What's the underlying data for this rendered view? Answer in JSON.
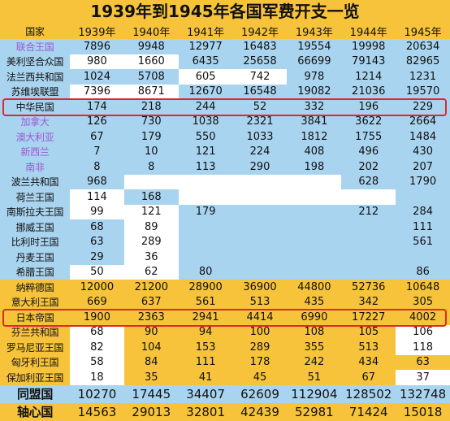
{
  "title": "1939年到1945年各国军费开支一览",
  "header": {
    "name": "国家",
    "years": [
      "1939年",
      "1940年",
      "1941年",
      "1942年",
      "1943年",
      "1944年",
      "1945年"
    ]
  },
  "colors": {
    "title_bg": "#f6c33a",
    "header_bg": "#f6c33a",
    "allies_bg": "#a9d4f0",
    "axis_bg": "#f6c33a",
    "blank_cell": "#ffffff",
    "purple_text": "#9b59d0",
    "highlight_border": "#e0282b"
  },
  "allies": [
    {
      "name": "联合王国",
      "purple": true,
      "values": [
        "7896",
        "9948",
        "12977",
        "16483",
        "19554",
        "19998",
        "20634"
      ]
    },
    {
      "name": "美利坚合众国",
      "purple": false,
      "values": [
        "980",
        "1660",
        "6435",
        "25658",
        "66699",
        "79143",
        "82965"
      ],
      "white": [
        0,
        1
      ]
    },
    {
      "name": "法兰西共和国",
      "purple": false,
      "values": [
        "1024",
        "5708",
        "605",
        "742",
        "978",
        "1214",
        "1231"
      ],
      "white": [
        2,
        3
      ]
    },
    {
      "name": "苏维埃联盟",
      "purple": false,
      "values": [
        "7396",
        "8671",
        "12670",
        "16548",
        "19082",
        "21036",
        "19570"
      ],
      "white": [
        0,
        1
      ]
    },
    {
      "name": "中华民国",
      "purple": false,
      "values": [
        "174",
        "218",
        "244",
        "52",
        "332",
        "196",
        "229"
      ],
      "highlight": true
    },
    {
      "name": "加拿大",
      "purple": true,
      "values": [
        "126",
        "730",
        "1038",
        "2321",
        "3841",
        "3622",
        "2664"
      ]
    },
    {
      "name": "澳大利亚",
      "purple": true,
      "values": [
        "67",
        "179",
        "550",
        "1033",
        "1812",
        "1755",
        "1484"
      ]
    },
    {
      "name": "新西兰",
      "purple": true,
      "values": [
        "7",
        "10",
        "121",
        "224",
        "408",
        "496",
        "430"
      ]
    },
    {
      "name": "南非",
      "purple": true,
      "values": [
        "8",
        "8",
        "113",
        "290",
        "198",
        "202",
        "207"
      ]
    },
    {
      "name": "波兰共和国",
      "purple": false,
      "values": [
        "968",
        "",
        "",
        "",
        "",
        "628",
        "1790"
      ],
      "white": [
        1,
        2,
        3,
        4
      ]
    },
    {
      "name": "荷兰王国",
      "purple": false,
      "values": [
        "114",
        "168",
        "",
        "",
        "",
        "",
        ""
      ],
      "white": [
        0,
        2,
        3,
        4,
        5
      ]
    },
    {
      "name": "南斯拉夫王国",
      "purple": false,
      "values": [
        "99",
        "121",
        "179",
        "",
        "",
        "212",
        "284"
      ],
      "white": [
        0,
        1
      ]
    },
    {
      "name": "挪威王国",
      "purple": false,
      "values": [
        "68",
        "89",
        "",
        "",
        "",
        "",
        "111"
      ],
      "white": [
        1
      ]
    },
    {
      "name": "比利时王国",
      "purple": false,
      "values": [
        "63",
        "289",
        "",
        "",
        "",
        "",
        "561"
      ],
      "white": [
        1
      ]
    },
    {
      "name": "丹麦王国",
      "purple": false,
      "values": [
        "29",
        "36",
        "",
        "",
        "",
        "",
        ""
      ],
      "white": [
        1
      ]
    },
    {
      "name": "希腊王国",
      "purple": false,
      "values": [
        "50",
        "62",
        "80",
        "",
        "",
        "",
        "86"
      ],
      "white": [
        0,
        1
      ]
    }
  ],
  "axis": [
    {
      "name": "纳粹德国",
      "values": [
        "12000",
        "21200",
        "28900",
        "36900",
        "44800",
        "52736",
        "10648"
      ]
    },
    {
      "name": "意大利王国",
      "values": [
        "669",
        "637",
        "561",
        "513",
        "435",
        "342",
        "305"
      ]
    },
    {
      "name": "日本帝国",
      "values": [
        "1900",
        "2363",
        "2941",
        "4414",
        "6990",
        "17227",
        "4002"
      ],
      "highlight": true
    },
    {
      "name": "芬兰共和国",
      "values": [
        "68",
        "90",
        "94",
        "100",
        "108",
        "105",
        "106"
      ],
      "white": [
        0,
        6
      ]
    },
    {
      "name": "罗马尼亚王国",
      "values": [
        "82",
        "104",
        "153",
        "289",
        "355",
        "513",
        "118"
      ],
      "white": [
        0,
        6
      ]
    },
    {
      "name": "匈牙利王国",
      "values": [
        "58",
        "84",
        "111",
        "178",
        "242",
        "434",
        "63"
      ],
      "white": [
        0
      ]
    },
    {
      "name": "保加利亚王国",
      "values": [
        "18",
        "35",
        "41",
        "45",
        "51",
        "67",
        "37"
      ],
      "white": [
        0,
        6
      ]
    }
  ],
  "totals": [
    {
      "name": "同盟国",
      "values": [
        "10270",
        "17445",
        "34407",
        "62609",
        "112904",
        "128502",
        "132748"
      ]
    },
    {
      "name": "轴心国",
      "values": [
        "14563",
        "29013",
        "32801",
        "42439",
        "52981",
        "71424",
        "15018"
      ]
    }
  ]
}
